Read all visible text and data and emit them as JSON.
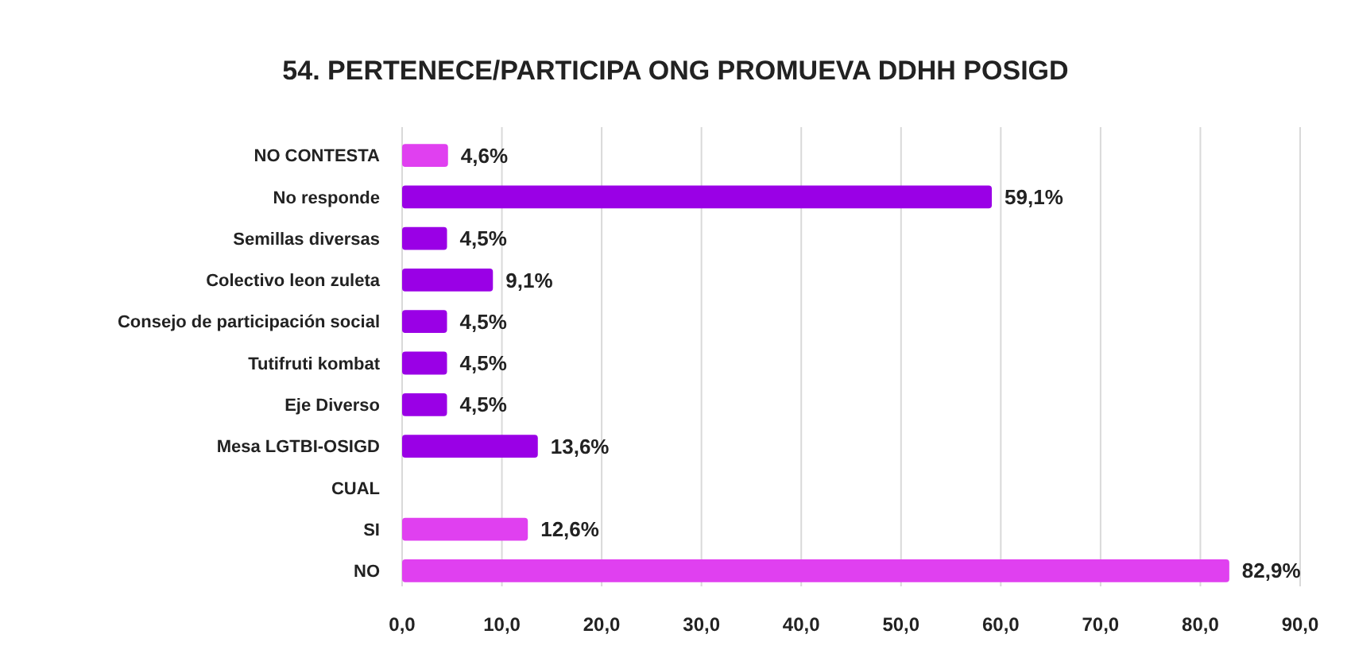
{
  "chart_data": {
    "type": "bar",
    "orientation": "horizontal",
    "title": "54. PERTENECE/PARTICIPA ONG PROMUEVA DDHH POSIGD",
    "categories": [
      "NO CONTESTA",
      "No responde",
      "Semillas diversas",
      "Colectivo leon zuleta",
      "Consejo de participación social",
      "Tutifruti kombat",
      "Eje Diverso",
      "Mesa LGTBI-OSIGD",
      "CUAL",
      "SI",
      "NO"
    ],
    "values": [
      4.6,
      59.1,
      4.5,
      9.1,
      4.5,
      4.5,
      4.5,
      13.6,
      null,
      12.6,
      82.9
    ],
    "colors": [
      "#e040f0",
      "#9a00e6",
      "#9a00e6",
      "#9a00e6",
      "#9a00e6",
      "#9a00e6",
      "#9a00e6",
      "#9a00e6",
      null,
      "#e040f0",
      "#e040f0"
    ],
    "value_labels": [
      "4,6%",
      "59,1%",
      "4,5%",
      "9,1%",
      "4,5%",
      "4,5%",
      "4,5%",
      "13,6%",
      null,
      "12,6%",
      "82,9%"
    ],
    "xlim": [
      0,
      90
    ],
    "xticks": [
      {
        "value": 0,
        "label": "0,0"
      },
      {
        "value": 10,
        "label": "10,0"
      },
      {
        "value": 20,
        "label": "20,0"
      },
      {
        "value": 30,
        "label": "30,0"
      },
      {
        "value": 40,
        "label": "40,0"
      },
      {
        "value": 50,
        "label": "50,0"
      },
      {
        "value": 60,
        "label": "60,0"
      },
      {
        "value": 70,
        "label": "70,0"
      },
      {
        "value": 80,
        "label": "80,0"
      },
      {
        "value": 90,
        "label": "90,0"
      }
    ],
    "grid": "x"
  }
}
